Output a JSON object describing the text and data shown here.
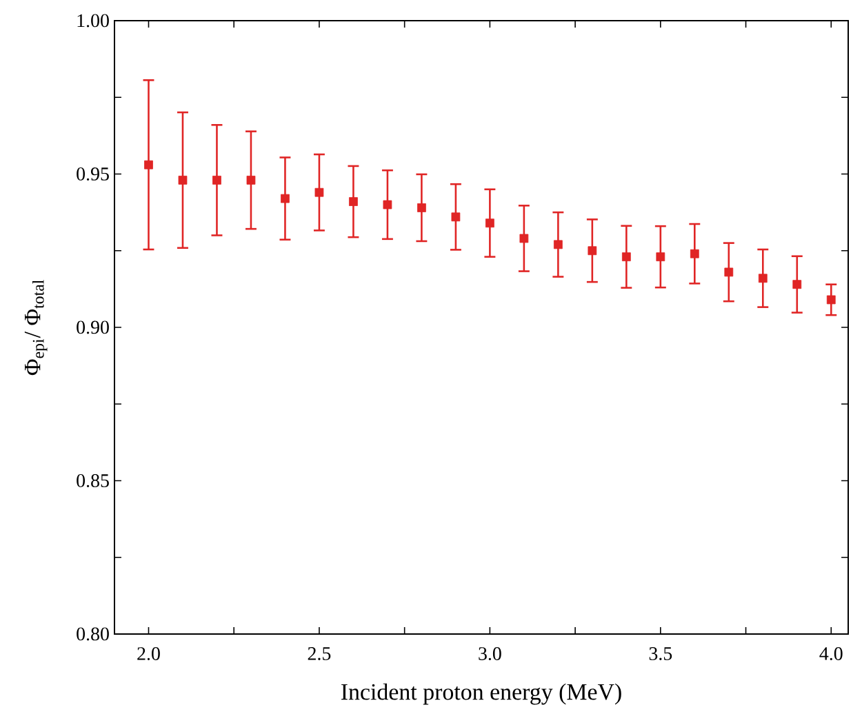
{
  "chart_data": {
    "type": "scatter",
    "xlabel": "Incident proton energy (MeV)",
    "ylabel": "Φ$_{epi}$/ Φ$_{total}$",
    "x": [
      2.0,
      2.1,
      2.2,
      2.3,
      2.4,
      2.5,
      2.6,
      2.7,
      2.8,
      2.9,
      3.0,
      3.1,
      3.2,
      3.3,
      3.4,
      3.5,
      3.6,
      3.7,
      3.8,
      3.9,
      4.0
    ],
    "series": [
      {
        "color": "#e02525",
        "values": [
          0.953,
          0.948,
          0.948,
          0.948,
          0.942,
          0.944,
          0.941,
          0.94,
          0.939,
          0.936,
          0.934,
          0.929,
          0.927,
          0.925,
          0.923,
          0.923,
          0.924,
          0.918,
          0.916,
          0.914,
          0.909
        ],
        "errors": [
          0.0276,
          0.0221,
          0.018,
          0.0159,
          0.0134,
          0.0124,
          0.0116,
          0.0112,
          0.0109,
          0.0107,
          0.011,
          0.0107,
          0.0105,
          0.0102,
          0.0101,
          0.01,
          0.0097,
          0.0095,
          0.0094,
          0.0092,
          0.005
        ]
      }
    ],
    "marker": "square",
    "xlim": [
      1.9,
      4.05
    ],
    "ylim": [
      0.8,
      1.0
    ],
    "xticks": [
      {
        "value": 2.0,
        "label": "2.0"
      },
      {
        "value": 2.25,
        "label": null
      },
      {
        "value": 2.5,
        "label": "2.5"
      },
      {
        "value": 2.75,
        "label": null
      },
      {
        "value": 3.0,
        "label": "3.0"
      },
      {
        "value": 3.25,
        "label": null
      },
      {
        "value": 3.5,
        "label": "3.5"
      },
      {
        "value": 3.75,
        "label": null
      },
      {
        "value": 4.0,
        "label": "4.0"
      }
    ],
    "yticks": [
      {
        "value": 0.8,
        "label": "0.80"
      },
      {
        "value": 0.825,
        "label": null
      },
      {
        "value": 0.85,
        "label": "0.85"
      },
      {
        "value": 0.875,
        "label": null
      },
      {
        "value": 0.9,
        "label": "0.90"
      },
      {
        "value": 0.925,
        "label": null
      },
      {
        "value": 0.95,
        "label": "0.95"
      },
      {
        "value": 0.975,
        "label": null
      },
      {
        "value": 1.0,
        "label": "1.00"
      }
    ],
    "grid": false
  }
}
